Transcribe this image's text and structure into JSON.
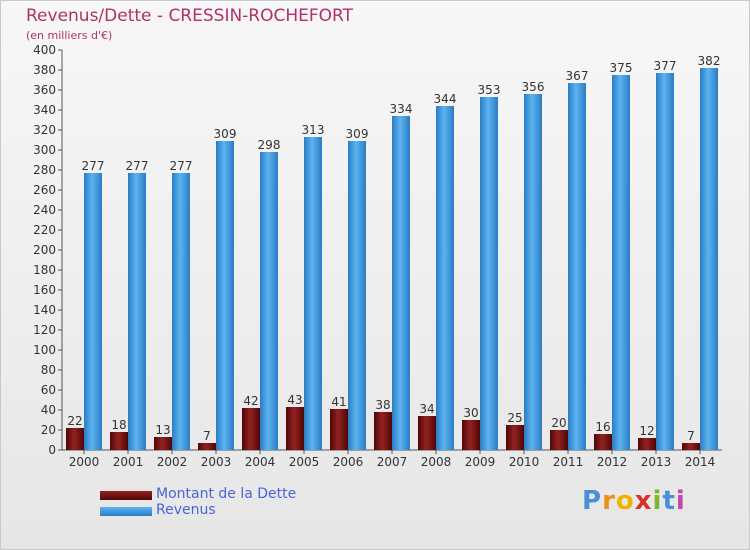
{
  "chart_data": {
    "type": "bar",
    "title": "Revenus/Dette - CRESSIN-ROCHEFORT",
    "subtitle": "(en milliers d'€)",
    "xlabel": "",
    "ylabel": "",
    "ylim": [
      0,
      400
    ],
    "yticks": [
      0,
      20,
      40,
      60,
      80,
      100,
      120,
      140,
      160,
      180,
      200,
      220,
      240,
      260,
      280,
      300,
      320,
      340,
      360,
      380,
      400
    ],
    "grid": false,
    "legend_position": "bottom-left",
    "categories": [
      "2000",
      "2001",
      "2002",
      "2003",
      "2004",
      "2005",
      "2006",
      "2007",
      "2008",
      "2009",
      "2010",
      "2011",
      "2012",
      "2013",
      "2014"
    ],
    "series": [
      {
        "name": "Montant de la Dette",
        "color": "#7a1414",
        "values": [
          22,
          18,
          13,
          7,
          42,
          43,
          41,
          38,
          34,
          30,
          25,
          20,
          16,
          12,
          7
        ]
      },
      {
        "name": "Revenus",
        "color": "#4aa3e6",
        "values": [
          277,
          277,
          277,
          309,
          298,
          313,
          309,
          334,
          344,
          353,
          356,
          367,
          375,
          377,
          382
        ]
      }
    ]
  },
  "branding": {
    "logo_letters": [
      "P",
      "r",
      "o",
      "x",
      "i",
      "t",
      "i"
    ]
  }
}
